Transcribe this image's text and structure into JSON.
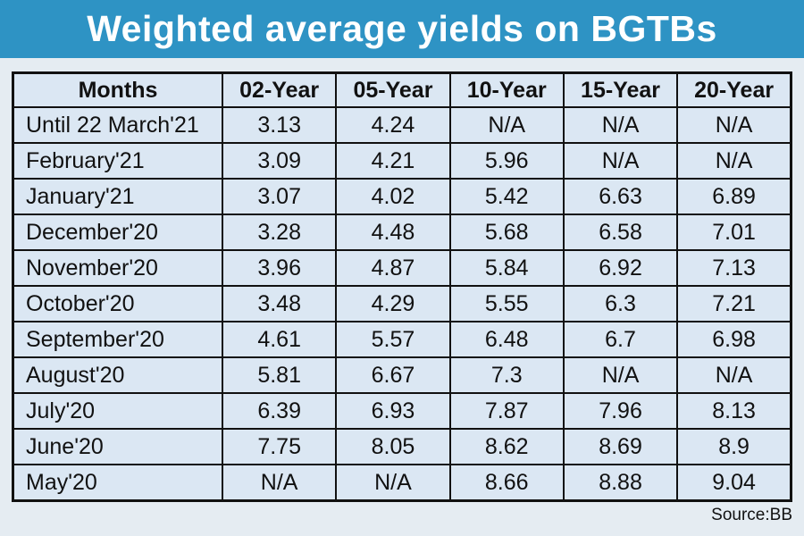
{
  "title": "Weighted average yields on BGTBs",
  "source_label": "Source:BB",
  "colors": {
    "banner_blue": "#2e93c4",
    "banner_text": "#ffffff",
    "page_background": "#e5ecf2",
    "cell_background": "#dbe7f3",
    "border_black": "#111111"
  },
  "chart_data": {
    "type": "table",
    "title": "Weighted average yields on BGTBs",
    "columns": [
      "Months",
      "02-Year",
      "05-Year",
      "10-Year",
      "15-Year",
      "20-Year"
    ],
    "rows": [
      [
        "Until 22 March'21",
        "3.13",
        "4.24",
        "N/A",
        "N/A",
        "N/A"
      ],
      [
        "February'21",
        "3.09",
        "4.21",
        "5.96",
        "N/A",
        "N/A"
      ],
      [
        "January'21",
        "3.07",
        "4.02",
        "5.42",
        "6.63",
        "6.89"
      ],
      [
        "December'20",
        "3.28",
        "4.48",
        "5.68",
        "6.58",
        "7.01"
      ],
      [
        "November'20",
        "3.96",
        "4.87",
        "5.84",
        "6.92",
        "7.13"
      ],
      [
        "October'20",
        "3.48",
        "4.29",
        "5.55",
        "6.3",
        "7.21"
      ],
      [
        "September'20",
        "4.61",
        "5.57",
        "6.48",
        "6.7",
        "6.98"
      ],
      [
        "August'20",
        "5.81",
        "6.67",
        "7.3",
        "N/A",
        "N/A"
      ],
      [
        "July'20",
        "6.39",
        "6.93",
        "7.87",
        "7.96",
        "8.13"
      ],
      [
        "June'20",
        "7.75",
        "8.05",
        "8.62",
        "8.69",
        "8.9"
      ],
      [
        "May'20",
        "N/A",
        "N/A",
        "8.66",
        "8.88",
        "9.04"
      ]
    ],
    "source": "Source:BB"
  }
}
